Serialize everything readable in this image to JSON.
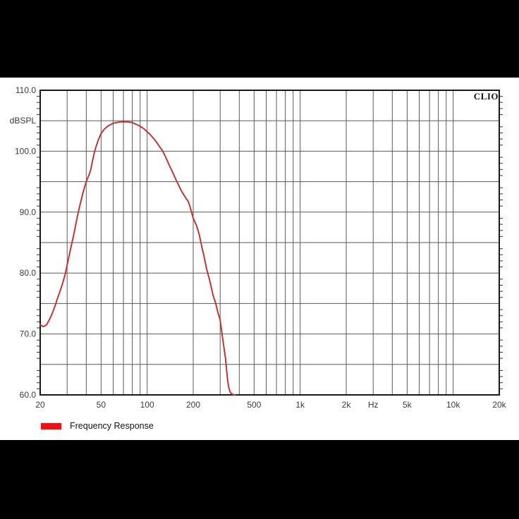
{
  "branding": "CLIO",
  "legend": {
    "label": "Frequency Response",
    "swatch_color": "#ee1111"
  },
  "chart_data": {
    "type": "line",
    "title": "CLIO",
    "xlabel": "Hz",
    "ylabel": "dBSPL",
    "x_axis": {
      "scale": "log",
      "unit": "Hz",
      "min": 20,
      "max": 20000,
      "labels": [
        {
          "f": 20,
          "label": "20"
        },
        {
          "f": 50,
          "label": "50"
        },
        {
          "f": 100,
          "label": "100"
        },
        {
          "f": 200,
          "label": "200"
        },
        {
          "f": 500,
          "label": "500"
        },
        {
          "f": 1000,
          "label": "1k"
        },
        {
          "f": 2000,
          "label": "2k"
        },
        {
          "f": 3000,
          "label": "Hz"
        },
        {
          "f": 5000,
          "label": "5k"
        },
        {
          "f": 10000,
          "label": "10k"
        },
        {
          "f": 20000,
          "label": "20k"
        }
      ],
      "gridline_freqs": [
        30,
        40,
        50,
        60,
        70,
        80,
        90,
        100,
        200,
        300,
        400,
        500,
        600,
        700,
        800,
        900,
        1000,
        2000,
        3000,
        4000,
        5000,
        6000,
        7000,
        8000,
        9000,
        10000
      ]
    },
    "y_axis": {
      "unit": "dBSPL",
      "min": 60,
      "max": 110,
      "gridline_step": 5,
      "minor_tick_step": 1,
      "labels": [
        {
          "db": 110,
          "label": "110.0"
        },
        {
          "db": 105,
          "label": "dBSPL"
        },
        {
          "db": 100,
          "label": "100.0"
        },
        {
          "db": 90,
          "label": "90.0"
        },
        {
          "db": 80,
          "label": "80.0"
        },
        {
          "db": 70,
          "label": "70.0"
        },
        {
          "db": 60,
          "label": "60.0"
        }
      ]
    },
    "grid_color": "#5a5a5a",
    "frame_color": "#1a1a1a",
    "label_color": "#3a3a3a",
    "series": [
      {
        "name": "Frequency Response",
        "color": "#c13535",
        "points": [
          [
            20,
            71.5
          ],
          [
            21,
            71.2
          ],
          [
            22,
            71.5
          ],
          [
            23,
            72.4
          ],
          [
            24,
            73.4
          ],
          [
            25,
            74.6
          ],
          [
            26,
            75.9
          ],
          [
            27,
            77.1
          ],
          [
            28,
            78.3
          ],
          [
            29,
            79.6
          ],
          [
            30,
            81.3
          ],
          [
            31,
            83.0
          ],
          [
            32,
            84.6
          ],
          [
            33,
            86.1
          ],
          [
            34,
            87.7
          ],
          [
            35,
            89.3
          ],
          [
            36,
            90.7
          ],
          [
            37,
            91.9
          ],
          [
            38,
            93.1
          ],
          [
            39,
            94.1
          ],
          [
            40,
            95.0
          ],
          [
            41,
            95.7
          ],
          [
            42,
            96.3
          ],
          [
            43,
            97.2
          ],
          [
            44,
            98.5
          ],
          [
            45,
            99.6
          ],
          [
            46,
            100.5
          ],
          [
            47,
            101.2
          ],
          [
            48,
            101.9
          ],
          [
            49,
            102.4
          ],
          [
            50,
            102.9
          ],
          [
            52,
            103.5
          ],
          [
            54,
            103.9
          ],
          [
            56,
            104.2
          ],
          [
            58,
            104.4
          ],
          [
            60,
            104.6
          ],
          [
            63,
            104.7
          ],
          [
            67,
            104.8
          ],
          [
            70,
            104.8
          ],
          [
            75,
            104.8
          ],
          [
            80,
            104.7
          ],
          [
            85,
            104.4
          ],
          [
            90,
            104.1
          ],
          [
            95,
            103.7
          ],
          [
            100,
            103.2
          ],
          [
            105,
            102.7
          ],
          [
            110,
            102.1
          ],
          [
            115,
            101.5
          ],
          [
            120,
            100.8
          ],
          [
            125,
            100.2
          ],
          [
            130,
            99.4
          ],
          [
            135,
            98.5
          ],
          [
            140,
            97.6
          ],
          [
            145,
            96.8
          ],
          [
            150,
            96.0
          ],
          [
            155,
            95.2
          ],
          [
            160,
            94.5
          ],
          [
            165,
            93.8
          ],
          [
            170,
            93.2
          ],
          [
            175,
            92.7
          ],
          [
            180,
            92.2
          ],
          [
            185,
            91.8
          ],
          [
            190,
            91.0
          ],
          [
            195,
            90.0
          ],
          [
            200,
            89.0
          ],
          [
            205,
            88.4
          ],
          [
            210,
            87.8
          ],
          [
            215,
            87.0
          ],
          [
            220,
            86.1
          ],
          [
            225,
            84.9
          ],
          [
            230,
            83.8
          ],
          [
            235,
            82.8
          ],
          [
            240,
            81.7
          ],
          [
            245,
            80.6
          ],
          [
            250,
            79.8
          ],
          [
            255,
            79.0
          ],
          [
            260,
            78.1
          ],
          [
            265,
            77.2
          ],
          [
            270,
            76.3
          ],
          [
            275,
            75.7
          ],
          [
            280,
            75.1
          ],
          [
            285,
            74.3
          ],
          [
            290,
            73.5
          ],
          [
            295,
            72.9
          ],
          [
            300,
            72.3
          ],
          [
            305,
            70.9
          ],
          [
            310,
            69.6
          ],
          [
            315,
            68.4
          ],
          [
            320,
            67.2
          ],
          [
            325,
            66.0
          ],
          [
            330,
            64.2
          ],
          [
            335,
            62.6
          ],
          [
            340,
            61.4
          ],
          [
            345,
            60.8
          ],
          [
            350,
            60.4
          ],
          [
            360,
            60.1
          ],
          [
            375,
            60.0
          ]
        ]
      }
    ]
  }
}
